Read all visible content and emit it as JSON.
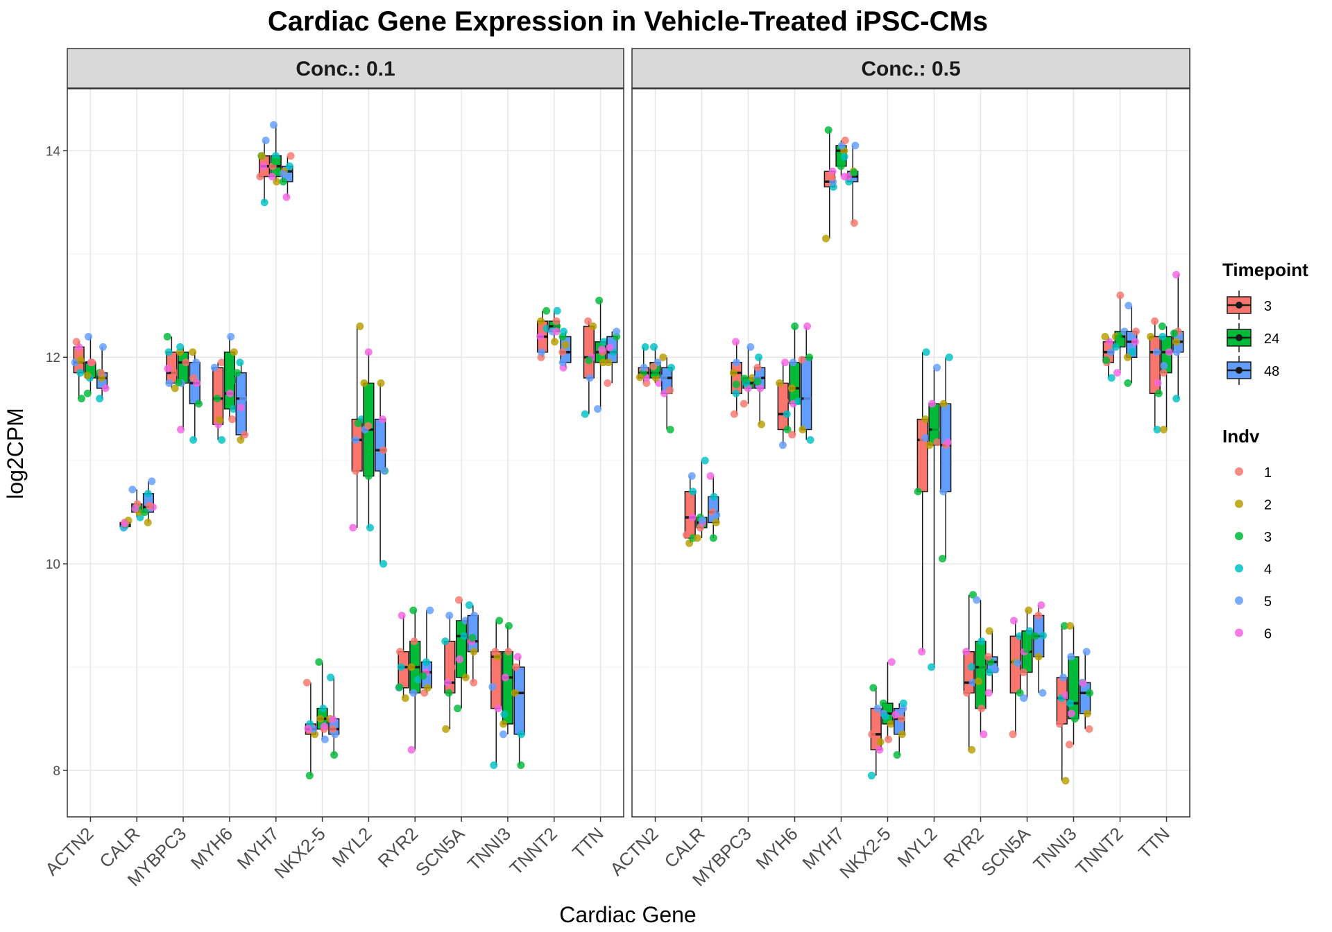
{
  "chart_data": {
    "type": "boxplot",
    "title": "Cardiac Gene Expression in Vehicle-Treated iPSC-CMs",
    "xlabel": "Cardiac Gene",
    "ylabel": "log2CPM",
    "ylim": [
      7.55,
      14.6
    ],
    "y_ticks": [
      8,
      10,
      12,
      14
    ],
    "grid": true,
    "legend_position": "right",
    "categories": [
      "ACTN2",
      "CALR",
      "MYBPC3",
      "MYH6",
      "MYH7",
      "NKX2-5",
      "MYL2",
      "RYR2",
      "SCN5A",
      "TNNI3",
      "TNNT2",
      "TTN"
    ],
    "timepoint_legend": {
      "title": "Timepoint",
      "items": [
        {
          "label": "3",
          "color": "#F8766D"
        },
        {
          "label": "24",
          "color": "#00BA38"
        },
        {
          "label": "48",
          "color": "#619CFF"
        }
      ]
    },
    "indv_legend": {
      "title": "Indv",
      "items": [
        {
          "label": "1",
          "color": "#F8766D"
        },
        {
          "label": "2",
          "color": "#B79F00"
        },
        {
          "label": "3",
          "color": "#00BA38"
        },
        {
          "label": "4",
          "color": "#00BFC4"
        },
        {
          "label": "5",
          "color": "#619CFF"
        },
        {
          "label": "6",
          "color": "#F564E3"
        }
      ]
    },
    "facets": [
      {
        "strip_label": "Conc.: 0.1",
        "boxes": {
          "ACTN2": [
            [
              11.6,
              11.85,
              11.95,
              12.1,
              12.15
            ],
            [
              11.65,
              11.8,
              11.95,
              11.95,
              12.2
            ],
            [
              11.6,
              11.7,
              11.8,
              11.85,
              12.1
            ]
          ],
          "CALR": [
            [
              10.35,
              10.36,
              10.38,
              10.4,
              10.42
            ],
            [
              10.45,
              10.5,
              10.55,
              10.58,
              10.72
            ],
            [
              10.4,
              10.5,
              10.55,
              10.68,
              10.8
            ]
          ],
          "MYBPC3": [
            [
              11.7,
              11.75,
              11.85,
              12.05,
              12.2
            ],
            [
              11.3,
              11.75,
              11.95,
              12.05,
              12.1
            ],
            [
              11.2,
              11.55,
              11.75,
              11.95,
              12.05
            ]
          ],
          "MYH6": [
            [
              11.2,
              11.35,
              11.6,
              11.9,
              11.95
            ],
            [
              11.4,
              11.5,
              11.65,
              12.05,
              12.2
            ],
            [
              11.2,
              11.25,
              11.6,
              11.85,
              11.95
            ]
          ],
          "MYH7": [
            [
              13.5,
              13.75,
              13.85,
              13.95,
              14.1
            ],
            [
              13.7,
              13.75,
              13.85,
              13.95,
              14.25
            ],
            [
              13.55,
              13.7,
              13.8,
              13.85,
              13.95
            ]
          ],
          "NKX2-5": [
            [
              7.95,
              8.35,
              8.4,
              8.45,
              8.85
            ],
            [
              8.3,
              8.4,
              8.5,
              8.6,
              9.05
            ],
            [
              8.15,
              8.35,
              8.4,
              8.5,
              8.9
            ]
          ],
          "MYL2": [
            [
              10.35,
              10.9,
              11.2,
              11.4,
              12.3
            ],
            [
              10.35,
              10.85,
              11.3,
              11.75,
              12.05
            ],
            [
              10.0,
              10.9,
              11.1,
              11.4,
              11.75
            ]
          ],
          "RYR2": [
            [
              8.7,
              8.8,
              9.0,
              9.15,
              9.5
            ],
            [
              8.2,
              8.75,
              9.0,
              9.25,
              9.55
            ],
            [
              8.75,
              8.8,
              8.95,
              9.05,
              9.55
            ]
          ],
          "SCN5A": [
            [
              8.4,
              8.75,
              8.85,
              9.25,
              9.5
            ],
            [
              8.6,
              8.9,
              9.3,
              9.45,
              9.65
            ],
            [
              8.85,
              9.15,
              9.25,
              9.5,
              9.6
            ]
          ],
          "TNNI3": [
            [
              8.05,
              8.6,
              9.1,
              9.15,
              9.45
            ],
            [
              8.35,
              8.45,
              8.9,
              9.15,
              9.4
            ],
            [
              8.05,
              8.35,
              8.75,
              9.0,
              9.1
            ]
          ],
          "TNNT2": [
            [
              12.0,
              12.05,
              12.2,
              12.35,
              12.45
            ],
            [
              12.15,
              12.25,
              12.3,
              12.35,
              12.45
            ],
            [
              11.9,
              11.95,
              12.05,
              12.2,
              12.25
            ]
          ],
          "TTN": [
            [
              11.45,
              11.8,
              12.0,
              12.3,
              12.35
            ],
            [
              11.5,
              11.95,
              12.05,
              12.15,
              12.55
            ],
            [
              11.75,
              11.95,
              12.05,
              12.2,
              12.25
            ]
          ]
        }
      },
      {
        "strip_label": "Conc.: 0.5",
        "boxes": {
          "ACTN2": [
            [
              11.75,
              11.8,
              11.85,
              11.9,
              12.1
            ],
            [
              11.75,
              11.8,
              11.85,
              11.95,
              12.1
            ],
            [
              11.3,
              11.65,
              11.8,
              11.9,
              12.0
            ]
          ],
          "CALR": [
            [
              10.2,
              10.25,
              10.45,
              10.7,
              10.85
            ],
            [
              10.25,
              10.35,
              10.4,
              10.45,
              11.0
            ],
            [
              10.25,
              10.4,
              10.5,
              10.65,
              10.85
            ]
          ],
          "MYBPC3": [
            [
              11.45,
              11.65,
              11.85,
              11.95,
              12.15
            ],
            [
              11.55,
              11.7,
              11.75,
              11.8,
              12.1
            ],
            [
              11.35,
              11.7,
              11.8,
              11.9,
              12.0
            ]
          ],
          "MYH6": [
            [
              11.15,
              11.3,
              11.45,
              11.75,
              11.95
            ],
            [
              11.25,
              11.55,
              11.7,
              11.95,
              12.3
            ],
            [
              11.2,
              11.3,
              11.6,
              12.0,
              12.3
            ]
          ],
          "MYH7": [
            [
              13.15,
              13.65,
              13.7,
              13.8,
              14.2
            ],
            [
              13.75,
              13.85,
              14.0,
              14.05,
              14.1
            ],
            [
              13.3,
              13.7,
              13.75,
              13.8,
              14.05
            ]
          ],
          "NKX2-5": [
            [
              7.95,
              8.2,
              8.35,
              8.6,
              8.8
            ],
            [
              8.3,
              8.45,
              8.55,
              8.65,
              9.05
            ],
            [
              8.15,
              8.35,
              8.5,
              8.6,
              8.65
            ]
          ],
          "MYL2": [
            [
              9.15,
              10.7,
              11.2,
              11.4,
              12.05
            ],
            [
              9.0,
              11.15,
              11.3,
              11.55,
              11.9
            ],
            [
              10.05,
              10.7,
              11.15,
              11.55,
              12.0
            ]
          ],
          "RYR2": [
            [
              8.2,
              8.75,
              8.85,
              9.15,
              9.7
            ],
            [
              8.35,
              8.6,
              9.0,
              9.25,
              9.65
            ],
            [
              8.75,
              8.95,
              9.05,
              9.1,
              9.35
            ]
          ],
          "SCN5A": [
            [
              8.35,
              8.75,
              9.05,
              9.3,
              9.45
            ],
            [
              8.7,
              8.95,
              9.15,
              9.35,
              9.55
            ],
            [
              8.75,
              9.1,
              9.3,
              9.5,
              9.6
            ]
          ],
          "TNNI3": [
            [
              7.9,
              8.45,
              8.7,
              8.9,
              9.4
            ],
            [
              8.25,
              8.5,
              8.65,
              9.1,
              9.4
            ],
            [
              8.4,
              8.55,
              8.75,
              8.85,
              9.15
            ]
          ],
          "TNNT2": [
            [
              11.8,
              11.95,
              12.05,
              12.15,
              12.2
            ],
            [
              11.85,
              12.1,
              12.2,
              12.25,
              12.6
            ],
            [
              11.75,
              12.0,
              12.15,
              12.25,
              12.5
            ]
          ],
          "TTN": [
            [
              11.3,
              11.65,
              12.05,
              12.2,
              12.35
            ],
            [
              11.3,
              11.85,
              12.05,
              12.2,
              12.3
            ],
            [
              11.6,
              12.05,
              12.15,
              12.25,
              12.8
            ]
          ]
        }
      }
    ]
  }
}
